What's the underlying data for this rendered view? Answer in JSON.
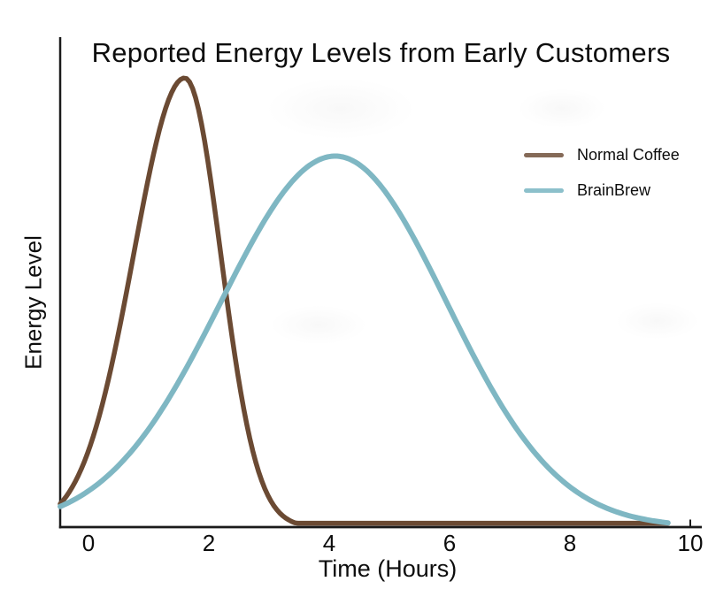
{
  "figure": {
    "title": "Reported Energy Levels from Early Customers",
    "x_axis": {
      "label": "Time (Hours)",
      "tick_labels": [
        "0",
        "2",
        "4",
        "6",
        "8",
        "10"
      ]
    },
    "y_axis": {
      "label": "Energy Level",
      "tick_labels": []
    }
  },
  "legend": {
    "items": [
      {
        "label": "Normal Coffee",
        "swatch_color": "#856a58"
      },
      {
        "label": "BrainBrew",
        "swatch_color": "#8cc0cb"
      }
    ]
  },
  "colors": {
    "normal_coffee_line": "#6b4a33",
    "brainbrew_line": "#7fb7c3",
    "axis": "#1a1a1a",
    "background": "#ffffff"
  },
  "chart_data": {
    "type": "line",
    "title": "Reported Energy Levels from Early Customers",
    "xlabel": "Time (Hours)",
    "ylabel": "Energy Level",
    "xlim": [
      -0.5,
      10.2
    ],
    "ylim": [
      0,
      1
    ],
    "x_ticks": [
      0,
      2,
      4,
      6,
      8,
      10
    ],
    "grid": false,
    "legend_position": "upper right",
    "series": [
      {
        "name": "Normal Coffee",
        "color": "#6b4a33",
        "line_width": 5.5,
        "curve_model": {
          "shape": "skewed-gaussian",
          "amplitude": 0.92,
          "peak_time": 1.6,
          "sigma_left": 0.85,
          "sigma_right": 0.6,
          "floor": 0.008,
          "t_start": -0.47,
          "t_end": 9.63
        },
        "sampled_points": {
          "t": [
            0,
            1,
            1.6,
            2,
            3,
            4,
            5,
            6,
            7,
            8,
            9,
            9.63
          ],
          "energy": [
            0.16,
            0.72,
            0.92,
            0.74,
            0.06,
            0.01,
            0.01,
            0.01,
            0.01,
            0.01,
            0.01,
            0.01
          ]
        }
      },
      {
        "name": "BrainBrew",
        "color": "#7fb7c3",
        "line_width": 6,
        "curve_model": {
          "shape": "skewed-gaussian",
          "amplitude": 0.76,
          "peak_time": 4.1,
          "sigma_left": 1.9,
          "sigma_right": 1.85,
          "floor": 0.008,
          "t_start": -0.47,
          "t_end": 9.63
        },
        "sampled_points": {
          "t": [
            0,
            1,
            2,
            3,
            4.1,
            5,
            6,
            7,
            8,
            9,
            9.63
          ],
          "energy": [
            0.07,
            0.2,
            0.41,
            0.64,
            0.76,
            0.68,
            0.45,
            0.22,
            0.08,
            0.02,
            0.01
          ]
        }
      }
    ]
  }
}
